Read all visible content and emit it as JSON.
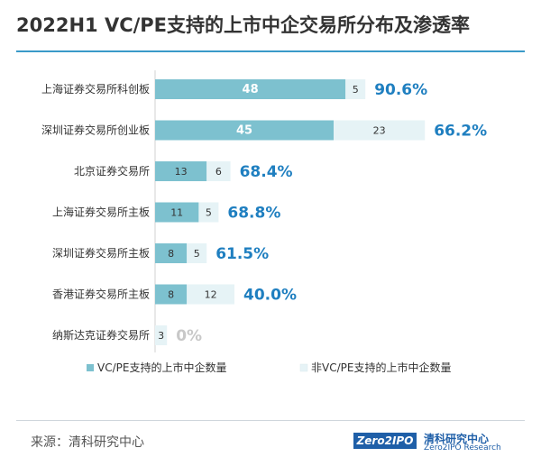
{
  "title": "2022H1 VC/PE支持的上市中企交易所分布及渗透率",
  "source": "来源：清科研究中心",
  "logo": {
    "mark": "Zero2IPO",
    "name": "清科研究中心",
    "subtitle": "Zero2IPO Research"
  },
  "colors": {
    "vc_pe": "#7dc1cf",
    "non_vc_pe": "#e6f3f6",
    "rate_text": "#1f7fc0",
    "zero_rate_text": "#c8c8c8"
  },
  "chart_data": {
    "type": "bar",
    "orientation": "horizontal",
    "stacked": true,
    "categories": [
      "上海证券交易所科创板",
      "深圳证券交易所创业板",
      "北京证券交易所",
      "上海证券交易所主板",
      "深圳证券交易所主板",
      "香港证券交易所主板",
      "纳斯达克证券交易所"
    ],
    "series": [
      {
        "name": "VC/PE支持的上市中企数量",
        "values": [
          48,
          45,
          13,
          11,
          8,
          8,
          0
        ]
      },
      {
        "name": "非VC/PE支持的上市中企数量",
        "values": [
          5,
          23,
          6,
          5,
          5,
          12,
          3
        ]
      }
    ],
    "value_labels": [
      [
        "48",
        "45",
        "13",
        "11",
        "8",
        "8",
        ""
      ],
      [
        "5",
        "23",
        "6",
        "5",
        "5",
        "12",
        "3"
      ]
    ],
    "penetration_rate": [
      "90.6%",
      "66.2%",
      "68.4%",
      "68.8%",
      "61.5%",
      "40.0%",
      "0%"
    ],
    "legend_position": "bottom",
    "grid": false
  }
}
